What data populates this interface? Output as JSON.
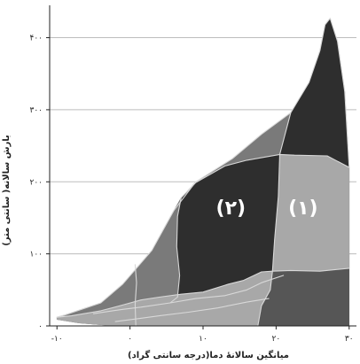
{
  "chart_data": {
    "type": "area",
    "xlabel": "میانگین سالانهٔ دما(درجه سانتی گراد)",
    "ylabel": "بارش سالانه( سانتی متر)",
    "xlim": [
      -11,
      31
    ],
    "ylim": [
      0,
      440
    ],
    "xticks": [
      -10,
      0,
      10,
      20,
      30
    ],
    "xtick_labels": [
      "-۱۰",
      "۰",
      "۱۰",
      "۲۰",
      "۳۰"
    ],
    "yticks": [
      0,
      100,
      200,
      300,
      400
    ],
    "ytick_labels": [
      "۰",
      "۱۰۰",
      "۲۰۰",
      "۳۰۰",
      "۴۰۰"
    ],
    "grid": "horizontal",
    "colors": {
      "darkest": "#2e2e2e",
      "dark": "#565656",
      "mid": "#7a7a7a",
      "light": "#a8a8a8",
      "boundary": "#d8d8d8",
      "gridline": "#bdbdbd"
    },
    "annotations": [
      {
        "text": "(۲)",
        "x": 13.8,
        "y": 165
      },
      {
        "text": "(۱)",
        "x": 23.7,
        "y": 165
      }
    ],
    "regions": [
      {
        "fill": "dark",
        "polygon": [
          [
            -10,
            12
          ],
          [
            -9,
            15
          ],
          [
            -4,
            32
          ],
          [
            -1,
            58
          ],
          [
            3,
            105
          ],
          [
            6,
            160
          ],
          [
            9,
            200
          ],
          [
            14,
            232
          ],
          [
            18,
            266
          ],
          [
            22,
            296
          ],
          [
            24.5,
            338
          ],
          [
            26,
            382
          ],
          [
            26.7,
            418
          ],
          [
            27.4,
            427
          ],
          [
            28.4,
            395
          ],
          [
            29.4,
            325
          ],
          [
            30,
            220
          ],
          [
            30,
            0
          ],
          [
            -2,
            0
          ],
          [
            -7,
            4
          ],
          [
            -10,
            9
          ]
        ]
      },
      {
        "fill": "mid",
        "polygon": [
          [
            -10,
            12
          ],
          [
            -9,
            15
          ],
          [
            -4,
            32
          ],
          [
            -1,
            58
          ],
          [
            3,
            105
          ],
          [
            6,
            160
          ],
          [
            7,
            178
          ],
          [
            6.5,
            152
          ],
          [
            6.4,
            110
          ],
          [
            6.8,
            70
          ],
          [
            6.5,
            40
          ],
          [
            5.5,
            32
          ],
          [
            1.5,
            26
          ],
          [
            -1,
            23
          ],
          [
            -3,
            20
          ],
          [
            -5,
            17
          ],
          [
            -8,
            13
          ]
        ]
      },
      {
        "fill": "mid",
        "polygon": [
          [
            7,
            178
          ],
          [
            9,
            200
          ],
          [
            14,
            232
          ],
          [
            18,
            266
          ],
          [
            22,
            296
          ],
          [
            20.5,
            238
          ],
          [
            16,
            230
          ],
          [
            13,
            222
          ],
          [
            9,
            199
          ]
        ]
      },
      {
        "fill": "darkest",
        "polygon": [
          [
            9,
            199
          ],
          [
            13,
            222
          ],
          [
            16,
            230
          ],
          [
            20.5,
            238
          ],
          [
            22,
            296
          ],
          [
            24.5,
            338
          ],
          [
            26,
            382
          ],
          [
            26.7,
            418
          ],
          [
            27.4,
            427
          ],
          [
            28.4,
            395
          ],
          [
            29.4,
            325
          ],
          [
            30,
            220
          ],
          [
            30,
            80
          ],
          [
            26,
            76
          ],
          [
            22,
            77
          ],
          [
            19.5,
            76
          ],
          [
            18,
            75
          ],
          [
            15.5,
            63
          ],
          [
            13.5,
            58
          ],
          [
            10,
            47
          ],
          [
            7,
            44
          ],
          [
            4,
            40
          ],
          [
            1.5,
            36
          ],
          [
            -1,
            29
          ],
          [
            -4,
            21
          ],
          [
            -8,
            14
          ],
          [
            -10,
            12
          ],
          [
            -8,
            13
          ],
          [
            -5,
            17
          ],
          [
            -3,
            20
          ],
          [
            -1,
            23
          ],
          [
            1.5,
            26
          ],
          [
            5.5,
            32
          ],
          [
            6.5,
            40
          ],
          [
            6.8,
            70
          ],
          [
            6.4,
            110
          ],
          [
            6.5,
            152
          ],
          [
            7,
            178
          ]
        ]
      },
      {
        "fill": "light",
        "polygon": [
          [
            20.5,
            238
          ],
          [
            22.5,
            237
          ],
          [
            27,
            236
          ],
          [
            30,
            220
          ],
          [
            30,
            80
          ],
          [
            26,
            76
          ],
          [
            22,
            77
          ],
          [
            19.5,
            76
          ],
          [
            19.8,
            120
          ],
          [
            20.3,
            180
          ]
        ]
      },
      {
        "fill": "light",
        "polygon": [
          [
            -10,
            12
          ],
          [
            -8,
            14
          ],
          [
            -4,
            21
          ],
          [
            -1,
            29
          ],
          [
            1.5,
            36
          ],
          [
            4,
            40
          ],
          [
            7,
            44
          ],
          [
            10,
            47
          ],
          [
            13.5,
            58
          ],
          [
            15.5,
            63
          ],
          [
            18,
            75
          ],
          [
            19.5,
            76
          ],
          [
            19.2,
            50
          ],
          [
            18,
            28
          ],
          [
            17.5,
            0
          ],
          [
            -2,
            0
          ],
          [
            -7,
            4
          ],
          [
            -10,
            9
          ]
        ]
      }
    ],
    "boundaries": [
      [
        [
          -10,
          12
        ],
        [
          -8,
          14
        ],
        [
          -4,
          21
        ],
        [
          -1,
          29
        ],
        [
          1.5,
          36
        ],
        [
          4,
          40
        ],
        [
          7,
          44
        ],
        [
          10,
          47
        ],
        [
          13.5,
          58
        ],
        [
          15.5,
          63
        ],
        [
          18,
          75
        ],
        [
          19.5,
          76
        ],
        [
          22,
          77
        ],
        [
          26,
          76
        ],
        [
          30,
          80
        ]
      ],
      [
        [
          -5,
          17
        ],
        [
          -3,
          20
        ],
        [
          -1,
          23
        ],
        [
          1.5,
          26
        ],
        [
          5.5,
          32
        ],
        [
          9,
          38
        ],
        [
          13,
          42
        ],
        [
          16,
          50
        ],
        [
          18,
          60
        ],
        [
          21,
          70
        ]
      ],
      [
        [
          -2,
          6
        ],
        [
          1,
          10
        ],
        [
          4,
          14
        ],
        [
          8,
          19
        ],
        [
          12,
          25
        ],
        [
          16,
          33
        ],
        [
          19,
          38
        ]
      ],
      [
        [
          7,
          178
        ],
        [
          9,
          199
        ],
        [
          13,
          222
        ],
        [
          16,
          230
        ],
        [
          20.5,
          238
        ],
        [
          22.5,
          237
        ],
        [
          27,
          236
        ],
        [
          30,
          220
        ]
      ],
      [
        [
          7,
          178
        ],
        [
          6.5,
          152
        ],
        [
          6.4,
          110
        ],
        [
          6.8,
          70
        ],
        [
          6.5,
          40
        ],
        [
          5.5,
          32
        ]
      ],
      [
        [
          17.5,
          0
        ],
        [
          18,
          28
        ],
        [
          19.2,
          50
        ],
        [
          19.5,
          76
        ],
        [
          19.8,
          120
        ],
        [
          20.3,
          180
        ],
        [
          20.5,
          238
        ],
        [
          22,
          296
        ]
      ],
      [
        [
          0.8,
          0
        ],
        [
          0.7,
          30
        ],
        [
          0.9,
          60
        ],
        [
          0.7,
          85
        ]
      ],
      [
        [
          -10,
          12
        ],
        [
          -9,
          15
        ],
        [
          -4,
          32
        ],
        [
          -1,
          58
        ],
        [
          3,
          105
        ],
        [
          6,
          160
        ],
        [
          9,
          200
        ],
        [
          14,
          232
        ],
        [
          18,
          266
        ],
        [
          22,
          296
        ],
        [
          24.5,
          338
        ],
        [
          26,
          382
        ],
        [
          26.7,
          418
        ],
        [
          27.4,
          427
        ],
        [
          28.4,
          395
        ],
        [
          29.4,
          325
        ],
        [
          30,
          220
        ]
      ]
    ]
  }
}
